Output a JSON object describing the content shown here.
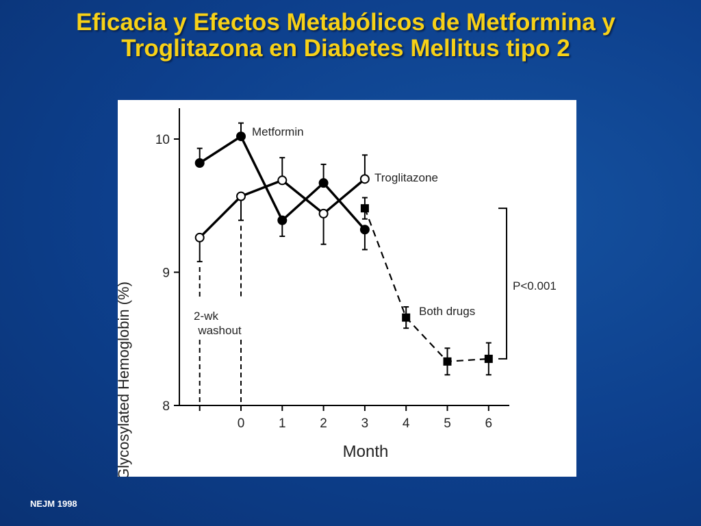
{
  "slide": {
    "title_line1": "Eficacia y Efectos Metabólicos de Metformina y",
    "title_line2": "Troglitazona en Diabetes Mellitus  tipo 2",
    "source": "NEJM 1998",
    "title_color": "#f7d117",
    "background_color": "#0d3f8c"
  },
  "chart_data": {
    "type": "line",
    "xlabel": "Month",
    "ylabel": "Glycosylated Hemoglobin (%)",
    "ylim": [
      8,
      10.2
    ],
    "yticks": [
      "8",
      "9",
      "10"
    ],
    "xticks": [
      "0",
      "1",
      "2",
      "3",
      "4",
      "5",
      "6"
    ],
    "grid": false,
    "series": [
      {
        "name": "Metformin",
        "marker": "filled-circle",
        "line": "solid",
        "x": [
          -1,
          0,
          1,
          2,
          3
        ],
        "y": [
          9.82,
          10.02,
          9.39,
          9.67,
          9.32
        ],
        "err": [
          0.11,
          0.1,
          0.12,
          0.14,
          0.15
        ]
      },
      {
        "name": "Troglitazone",
        "marker": "open-circle",
        "line": "solid",
        "x": [
          -1,
          0,
          1,
          2,
          3
        ],
        "y": [
          9.26,
          9.57,
          9.69,
          9.44,
          9.7
        ],
        "err": [
          0.18,
          0.18,
          0.17,
          0.23,
          0.18
        ]
      },
      {
        "name": "Both drugs",
        "marker": "filled-square",
        "line": "dashed",
        "x": [
          3,
          4,
          5,
          6
        ],
        "y": [
          9.48,
          8.66,
          8.33,
          8.35
        ],
        "err": [
          0.08,
          0.08,
          0.1,
          0.12
        ]
      }
    ],
    "annotations": {
      "washout_line1": "2-wk",
      "washout_line2": "washout",
      "pvalue": "P<0.001"
    }
  }
}
